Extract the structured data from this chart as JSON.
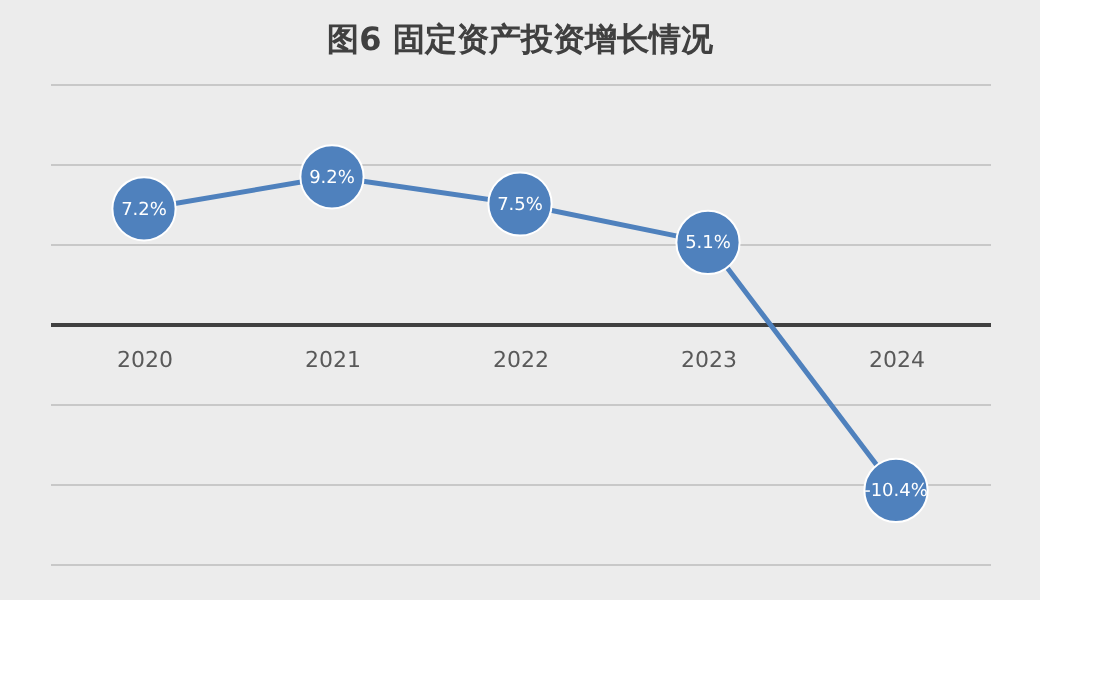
{
  "chart_data": {
    "type": "line",
    "title": "图6 固定资产投资增长情况",
    "categories": [
      "2020",
      "2021",
      "2022",
      "2023",
      "2024"
    ],
    "series": [
      {
        "color": "#4f81bd",
        "values": [
          7.2,
          9.2,
          7.5,
          5.1,
          -10.4
        ],
        "value_labels": [
          "7.2%",
          "9.2%",
          "7.5%",
          "5.1%",
          "-10.4%"
        ]
      }
    ],
    "ylim": [
      -15,
      15
    ],
    "grid": "y",
    "marker": "circle",
    "line_style": "solid",
    "legend": false,
    "tick_labels": "x"
  }
}
